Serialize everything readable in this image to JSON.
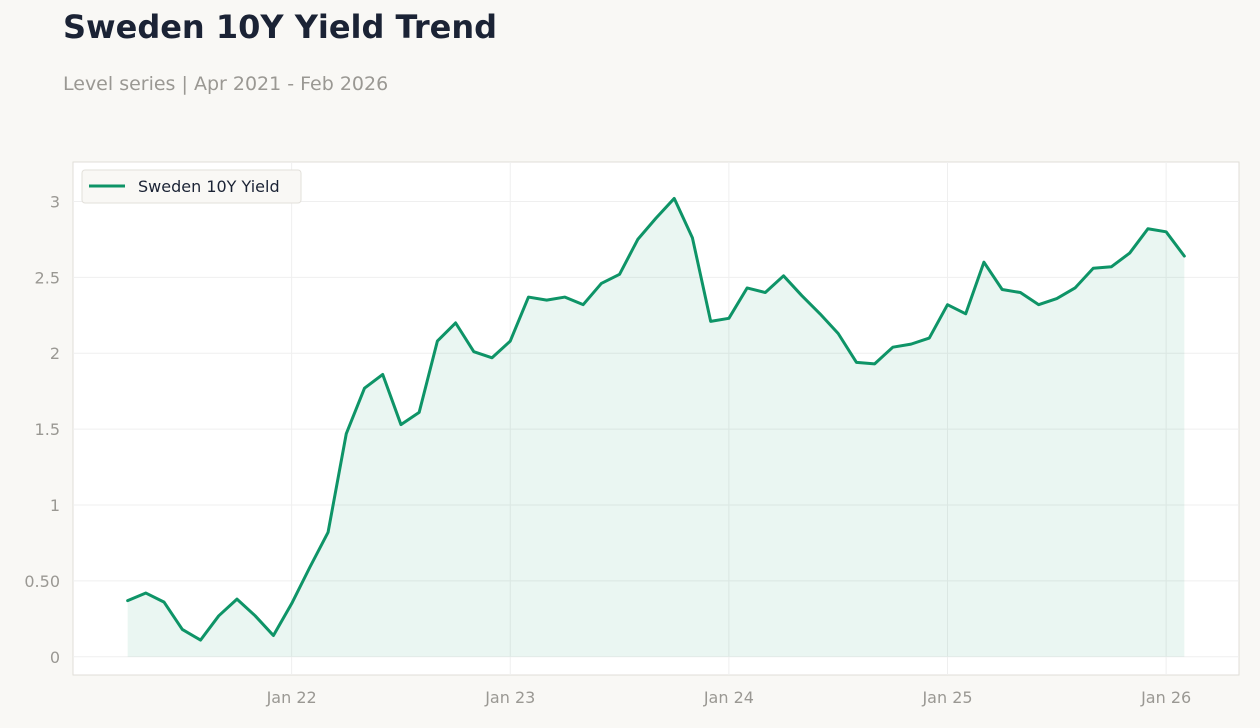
{
  "header": {
    "title": "Sweden 10Y Yield Trend",
    "subtitle": "Level series | Apr 2021 - Feb 2026"
  },
  "colors": {
    "line": "#0e9467",
    "fill": "#e9f4f0",
    "grid": "#efefef",
    "frame": "#e0ded8",
    "plot_bg": "#ffffff",
    "page_bg": "#f9f8f5"
  },
  "chart_data": {
    "type": "area",
    "title": "Sweden 10Y Yield Trend",
    "subtitle": "Level series | Apr 2021 - Feb 2026",
    "xlabel": "",
    "ylabel": "",
    "x_start": "2021-04",
    "x_step": "month",
    "xlim": [
      "2021-01",
      "2026-05"
    ],
    "ylim": [
      -0.12,
      3.26
    ],
    "x_ticks": [
      {
        "date": "2022-01",
        "label": "Jan 22"
      },
      {
        "date": "2023-01",
        "label": "Jan 23"
      },
      {
        "date": "2024-01",
        "label": "Jan 24"
      },
      {
        "date": "2025-01",
        "label": "Jan 25"
      },
      {
        "date": "2026-01",
        "label": "Jan 26"
      }
    ],
    "y_ticks": [
      {
        "value": 0,
        "label": "0"
      },
      {
        "value": 0.5,
        "label": "0.50"
      },
      {
        "value": 1,
        "label": "1"
      },
      {
        "value": 1.5,
        "label": "1.5"
      },
      {
        "value": 2,
        "label": "2"
      },
      {
        "value": 2.5,
        "label": "2.5"
      },
      {
        "value": 3,
        "label": "3"
      }
    ],
    "grid": true,
    "legend_position": "top-left",
    "series": [
      {
        "name": "Sweden 10Y Yield",
        "values": [
          0.37,
          0.42,
          0.36,
          0.18,
          0.11,
          0.27,
          0.38,
          0.27,
          0.14,
          0.35,
          0.59,
          0.82,
          1.47,
          1.77,
          1.86,
          1.53,
          1.61,
          2.08,
          2.2,
          2.01,
          1.97,
          2.08,
          2.37,
          2.35,
          2.37,
          2.32,
          2.46,
          2.52,
          2.75,
          2.89,
          3.02,
          2.76,
          2.21,
          2.23,
          2.43,
          2.4,
          2.51,
          2.38,
          2.26,
          2.13,
          1.94,
          1.93,
          2.04,
          2.06,
          2.1,
          2.32,
          2.26,
          2.6,
          2.42,
          2.4,
          2.32,
          2.36,
          2.43,
          2.56,
          2.57,
          2.66,
          2.82,
          2.8,
          2.64
        ]
      }
    ]
  }
}
